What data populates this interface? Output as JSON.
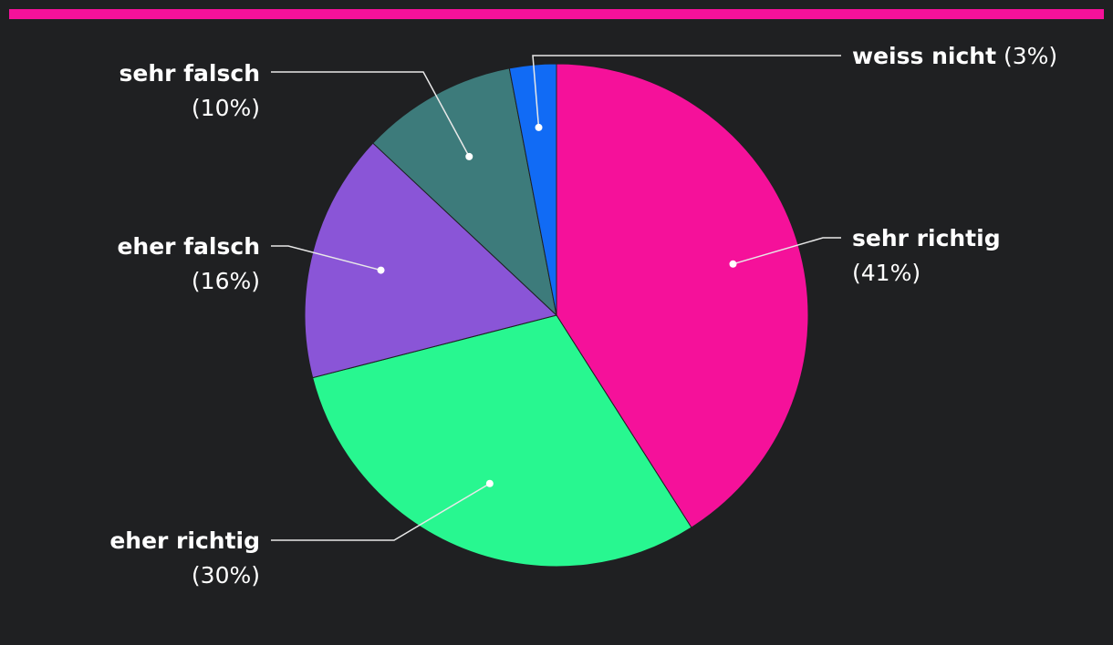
{
  "accent_color": "#f5119a",
  "chart_data": {
    "type": "pie",
    "categories": [
      "sehr richtig",
      "eher richtig",
      "eher falsch",
      "sehr falsch",
      "weiss nicht"
    ],
    "values": [
      41,
      30,
      16,
      10,
      3
    ],
    "value_labels": [
      "(41%)",
      "(30%)",
      "(16%)",
      "(10%)",
      "(3%)"
    ],
    "colors": [
      "#f5119a",
      "#28f790",
      "#8a55d7",
      "#3d7b7b",
      "#116bf5"
    ],
    "start": "12 o'clock",
    "direction": "clockwise",
    "legend": "none",
    "title": "",
    "labels_outside": true
  }
}
